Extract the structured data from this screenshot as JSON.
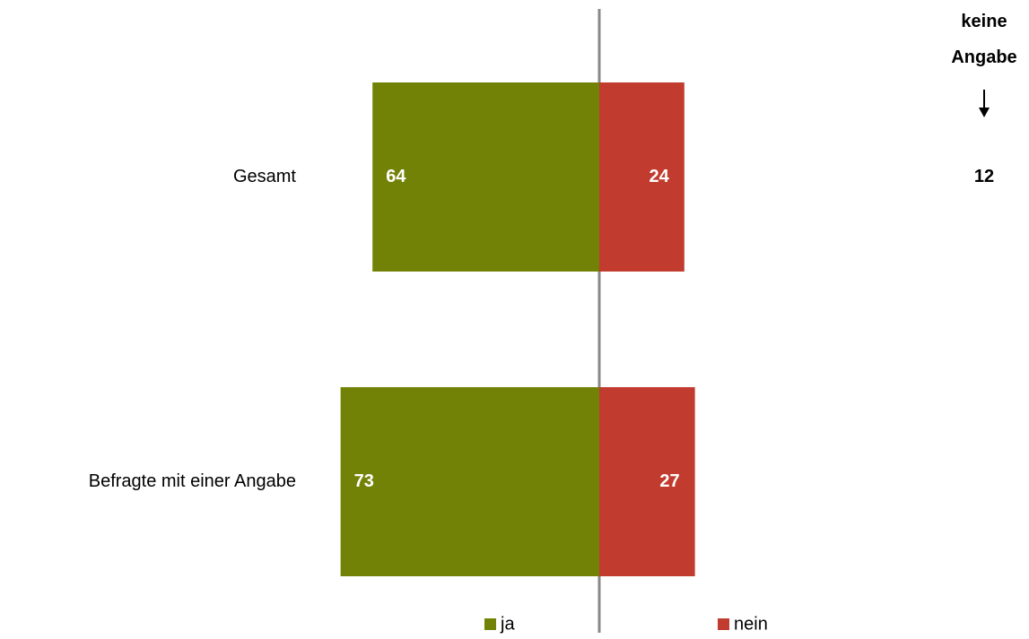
{
  "chart_data": {
    "type": "bar",
    "categories": [
      "Gesamt",
      "Befragte mit einer Angabe"
    ],
    "series": [
      {
        "name": "ja",
        "color": "#728206",
        "values": [
          64,
          73
        ]
      },
      {
        "name": "nein",
        "color": "#c13b2e",
        "values": [
          24,
          27
        ]
      }
    ],
    "no_answer": {
      "label": "keine Angabe",
      "values": [
        12,
        null
      ]
    }
  }
}
